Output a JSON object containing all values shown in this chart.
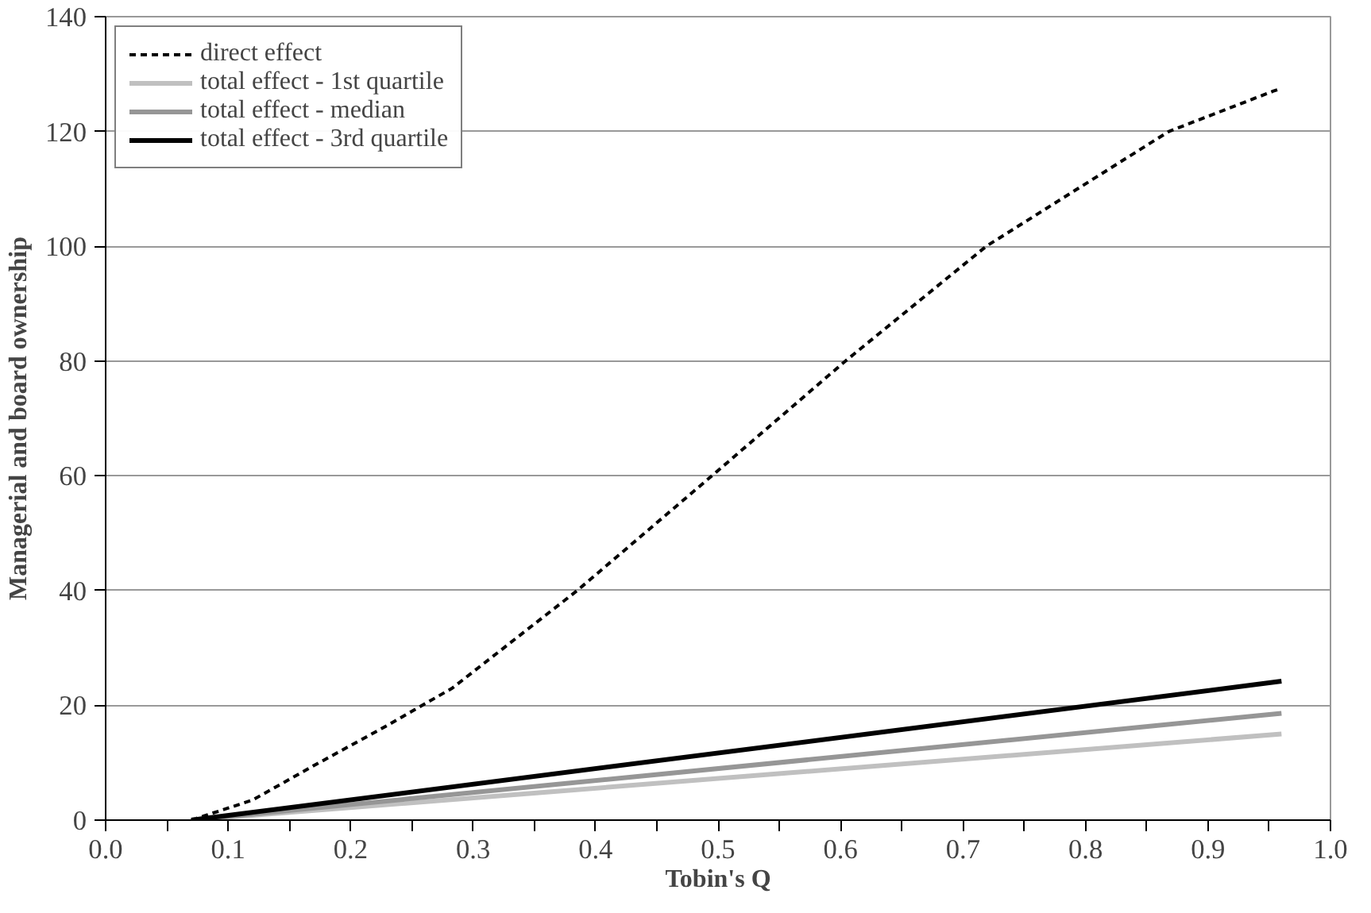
{
  "chart_data": {
    "type": "line",
    "xlabel": "Tobin's Q",
    "ylabel": "Managerial and board ownership",
    "xlim": [
      0,
      1
    ],
    "ylim": [
      0,
      140
    ],
    "xticks": [
      {
        "value": 0,
        "label": "0.0"
      },
      {
        "value": 0.05,
        "label": null
      },
      0.1,
      {
        "value": 0.15,
        "label": null
      },
      0.2,
      {
        "value": 0.25,
        "label": null
      },
      0.3,
      {
        "value": 0.35,
        "label": null
      },
      0.4,
      {
        "value": 0.45,
        "label": null
      },
      0.5,
      {
        "value": 0.55,
        "label": null
      },
      0.6,
      {
        "value": 0.65,
        "label": null
      },
      0.7,
      {
        "value": 0.75,
        "label": null
      },
      0.8,
      {
        "value": 0.85,
        "label": null
      },
      0.9,
      {
        "value": 0.95,
        "label": null
      },
      {
        "value": 1,
        "label": "1.0"
      }
    ],
    "yticks": [
      0,
      20,
      40,
      60,
      80,
      100,
      120,
      140
    ],
    "grid": "y",
    "legend": "top left",
    "marker": "none",
    "series": [
      {
        "name": "direct effect",
        "color": "#000000",
        "line_style": "dotted",
        "x": [
          0.07,
          0.12,
          0.17,
          0.23,
          0.283,
          0.385,
          0.495,
          0.604,
          0.719,
          0.868,
          0.953,
          0.96
        ],
        "values": [
          0,
          3.5,
          9.5,
          16.5,
          23,
          40,
          60,
          80,
          100,
          120,
          127,
          127.5
        ]
      },
      {
        "name": "total effect - 1st quartile",
        "color": "#c0c0c0",
        "line_style": "solid",
        "x": [
          0.07,
          0.96
        ],
        "values": [
          0,
          15
        ]
      },
      {
        "name": "total effect - median",
        "color": "#969696",
        "line_style": "solid",
        "x": [
          0.07,
          0.96
        ],
        "values": [
          0,
          18.6
        ]
      },
      {
        "name": "total effect - 3rd quartile",
        "color": "#000000",
        "line_style": "solid",
        "x": [
          0.07,
          0.96
        ],
        "values": [
          0,
          24.2
        ]
      }
    ]
  }
}
